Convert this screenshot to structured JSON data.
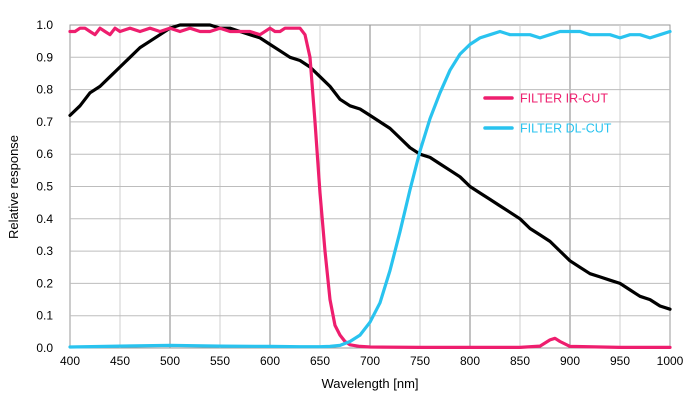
{
  "chart_data": {
    "type": "line",
    "title": "",
    "xlabel": "Wavelength [nm]",
    "ylabel": "Relative response",
    "xlim": [
      400,
      1000
    ],
    "ylim": [
      0,
      1.0
    ],
    "x_ticks": [
      "400",
      "450",
      "500",
      "550",
      "600",
      "650",
      "700",
      "750",
      "800",
      "850",
      "900",
      "950",
      "1000"
    ],
    "y_ticks": [
      "0.0",
      "0.1",
      "0.2",
      "0.3",
      "0.4",
      "0.5",
      "0.6",
      "0.7",
      "0.8",
      "0.9",
      "1.0"
    ],
    "grid": true,
    "legend_placement": "right",
    "series": [
      {
        "name": "",
        "color": "#000000",
        "points": [
          [
            400,
            0.72
          ],
          [
            410,
            0.75
          ],
          [
            420,
            0.79
          ],
          [
            430,
            0.81
          ],
          [
            440,
            0.84
          ],
          [
            450,
            0.87
          ],
          [
            460,
            0.9
          ],
          [
            470,
            0.93
          ],
          [
            480,
            0.95
          ],
          [
            490,
            0.97
          ],
          [
            500,
            0.99
          ],
          [
            510,
            1.0
          ],
          [
            520,
            1.0
          ],
          [
            530,
            1.0
          ],
          [
            540,
            1.0
          ],
          [
            550,
            0.99
          ],
          [
            560,
            0.99
          ],
          [
            570,
            0.98
          ],
          [
            580,
            0.97
          ],
          [
            590,
            0.96
          ],
          [
            600,
            0.94
          ],
          [
            610,
            0.92
          ],
          [
            620,
            0.9
          ],
          [
            630,
            0.89
          ],
          [
            640,
            0.87
          ],
          [
            650,
            0.84
          ],
          [
            660,
            0.81
          ],
          [
            670,
            0.77
          ],
          [
            680,
            0.75
          ],
          [
            690,
            0.74
          ],
          [
            700,
            0.72
          ],
          [
            710,
            0.7
          ],
          [
            720,
            0.68
          ],
          [
            730,
            0.65
          ],
          [
            740,
            0.62
          ],
          [
            750,
            0.6
          ],
          [
            760,
            0.59
          ],
          [
            770,
            0.57
          ],
          [
            780,
            0.55
          ],
          [
            790,
            0.53
          ],
          [
            800,
            0.5
          ],
          [
            810,
            0.48
          ],
          [
            820,
            0.46
          ],
          [
            830,
            0.44
          ],
          [
            840,
            0.42
          ],
          [
            850,
            0.4
          ],
          [
            860,
            0.37
          ],
          [
            870,
            0.35
          ],
          [
            880,
            0.33
          ],
          [
            890,
            0.3
          ],
          [
            900,
            0.27
          ],
          [
            910,
            0.25
          ],
          [
            920,
            0.23
          ],
          [
            930,
            0.22
          ],
          [
            940,
            0.21
          ],
          [
            950,
            0.2
          ],
          [
            960,
            0.18
          ],
          [
            970,
            0.16
          ],
          [
            980,
            0.15
          ],
          [
            990,
            0.13
          ],
          [
            1000,
            0.12
          ]
        ]
      },
      {
        "name": "FILTER IR-CUT",
        "color": "#ee1e6e",
        "points": [
          [
            400,
            0.98
          ],
          [
            405,
            0.98
          ],
          [
            410,
            0.99
          ],
          [
            415,
            0.99
          ],
          [
            420,
            0.98
          ],
          [
            425,
            0.97
          ],
          [
            430,
            0.99
          ],
          [
            435,
            0.98
          ],
          [
            440,
            0.97
          ],
          [
            445,
            0.99
          ],
          [
            450,
            0.98
          ],
          [
            460,
            0.99
          ],
          [
            470,
            0.98
          ],
          [
            480,
            0.99
          ],
          [
            490,
            0.98
          ],
          [
            500,
            0.99
          ],
          [
            510,
            0.98
          ],
          [
            520,
            0.99
          ],
          [
            530,
            0.98
          ],
          [
            540,
            0.98
          ],
          [
            550,
            0.99
          ],
          [
            560,
            0.98
          ],
          [
            570,
            0.98
          ],
          [
            580,
            0.98
          ],
          [
            590,
            0.97
          ],
          [
            600,
            0.99
          ],
          [
            605,
            0.98
          ],
          [
            610,
            0.98
          ],
          [
            615,
            0.99
          ],
          [
            620,
            0.99
          ],
          [
            630,
            0.99
          ],
          [
            635,
            0.97
          ],
          [
            640,
            0.9
          ],
          [
            645,
            0.7
          ],
          [
            650,
            0.48
          ],
          [
            655,
            0.3
          ],
          [
            660,
            0.15
          ],
          [
            665,
            0.07
          ],
          [
            670,
            0.04
          ],
          [
            675,
            0.02
          ],
          [
            680,
            0.01
          ],
          [
            690,
            0.005
          ],
          [
            700,
            0.003
          ],
          [
            750,
            0.002
          ],
          [
            800,
            0.002
          ],
          [
            850,
            0.002
          ],
          [
            870,
            0.006
          ],
          [
            880,
            0.025
          ],
          [
            885,
            0.03
          ],
          [
            890,
            0.02
          ],
          [
            900,
            0.005
          ],
          [
            950,
            0.002
          ],
          [
            1000,
            0.002
          ]
        ]
      },
      {
        "name": "FILTER DL-CUT",
        "color": "#29c3ef",
        "points": [
          [
            400,
            0.003
          ],
          [
            450,
            0.006
          ],
          [
            500,
            0.008
          ],
          [
            550,
            0.006
          ],
          [
            600,
            0.005
          ],
          [
            630,
            0.004
          ],
          [
            650,
            0.004
          ],
          [
            660,
            0.005
          ],
          [
            670,
            0.008
          ],
          [
            680,
            0.02
          ],
          [
            690,
            0.04
          ],
          [
            700,
            0.08
          ],
          [
            710,
            0.14
          ],
          [
            720,
            0.24
          ],
          [
            730,
            0.36
          ],
          [
            740,
            0.49
          ],
          [
            750,
            0.61
          ],
          [
            760,
            0.71
          ],
          [
            770,
            0.79
          ],
          [
            780,
            0.86
          ],
          [
            790,
            0.91
          ],
          [
            800,
            0.94
          ],
          [
            810,
            0.96
          ],
          [
            820,
            0.97
          ],
          [
            830,
            0.98
          ],
          [
            840,
            0.97
          ],
          [
            850,
            0.97
          ],
          [
            860,
            0.97
          ],
          [
            870,
            0.96
          ],
          [
            880,
            0.97
          ],
          [
            890,
            0.98
          ],
          [
            900,
            0.98
          ],
          [
            910,
            0.98
          ],
          [
            920,
            0.97
          ],
          [
            930,
            0.97
          ],
          [
            940,
            0.97
          ],
          [
            950,
            0.96
          ],
          [
            960,
            0.97
          ],
          [
            970,
            0.97
          ],
          [
            980,
            0.96
          ],
          [
            990,
            0.97
          ],
          [
            1000,
            0.98
          ]
        ]
      }
    ]
  }
}
